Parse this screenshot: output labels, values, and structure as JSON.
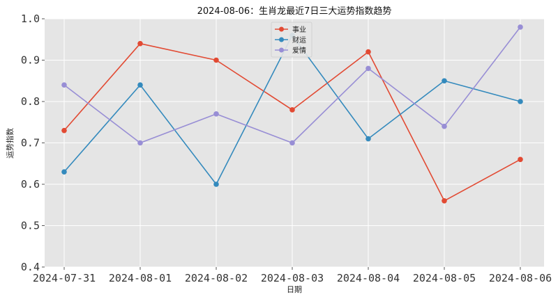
{
  "chart_data": {
    "type": "line",
    "title": "2024-08-06：生肖龙最近7日三大运势指数趋势",
    "xlabel": "日期",
    "ylabel": "运势指数",
    "x": [
      "2024-07-31",
      "2024-08-01",
      "2024-08-02",
      "2024-08-03",
      "2024-08-04",
      "2024-08-05",
      "2024-08-06"
    ],
    "ylim": [
      0.4,
      1.0
    ],
    "yticks": [
      "0.4",
      "0.5",
      "0.6",
      "0.7",
      "0.8",
      "0.9",
      "1.0"
    ],
    "grid": true,
    "legend_position": "top-center",
    "series": [
      {
        "name": "事业",
        "color": "#E24A33",
        "values": [
          0.73,
          0.94,
          0.9,
          0.78,
          0.92,
          0.56,
          0.66
        ]
      },
      {
        "name": "财运",
        "color": "#348ABD",
        "values": [
          0.63,
          0.84,
          0.6,
          0.96,
          0.71,
          0.85,
          0.8
        ]
      },
      {
        "name": "爱情",
        "color": "#988ED5",
        "values": [
          0.84,
          0.7,
          0.77,
          0.7,
          0.88,
          0.74,
          0.98
        ]
      }
    ]
  }
}
